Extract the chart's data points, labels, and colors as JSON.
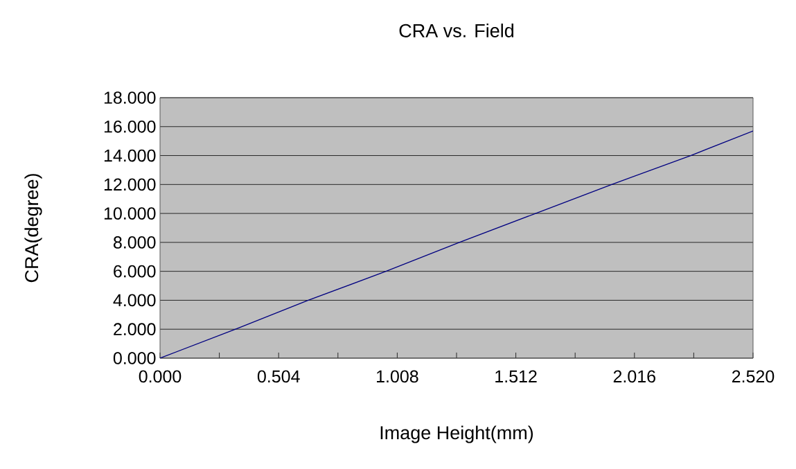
{
  "chart_data": {
    "type": "line",
    "title": "CRA vs. Field",
    "xlabel": "Image Height(mm)",
    "ylabel": "CRA(degree)",
    "x": [
      0,
      0.321,
      0.63,
      0.96,
      1.272,
      1.596,
      1.919,
      2.255,
      2.52
    ],
    "series": [
      {
        "color": "#000080",
        "values": [
          0,
          2,
          4,
          6,
          8,
          10,
          12,
          14,
          15.7
        ]
      }
    ],
    "xlim": [
      0,
      2.52
    ],
    "ylim": [
      0,
      18
    ],
    "xticks": [
      {
        "value": 0,
        "label": "0.000"
      },
      {
        "value": 0.252,
        "label": null
      },
      {
        "value": 0.504,
        "label": "0.504"
      },
      {
        "value": 0.756,
        "label": null
      },
      {
        "value": 1.008,
        "label": "1.008"
      },
      {
        "value": 1.26,
        "label": null
      },
      {
        "value": 1.512,
        "label": "1.512"
      },
      {
        "value": 1.764,
        "label": null
      },
      {
        "value": 2.016,
        "label": "2.016"
      },
      {
        "value": 2.268,
        "label": null
      },
      {
        "value": 2.52,
        "label": "2.520"
      }
    ],
    "yticks": [
      {
        "value": 0,
        "label": "0.000"
      },
      {
        "value": 2,
        "label": "2.000"
      },
      {
        "value": 4,
        "label": "4.000"
      },
      {
        "value": 6,
        "label": "6.000"
      },
      {
        "value": 8,
        "label": "8.000"
      },
      {
        "value": 10,
        "label": "10.000"
      },
      {
        "value": 12,
        "label": "12.000"
      },
      {
        "value": 14,
        "label": "14.000"
      },
      {
        "value": 16,
        "label": "16.000"
      },
      {
        "value": 18,
        "label": "18.000"
      }
    ],
    "grid": "y",
    "marker": "none",
    "line_style": "solid"
  }
}
